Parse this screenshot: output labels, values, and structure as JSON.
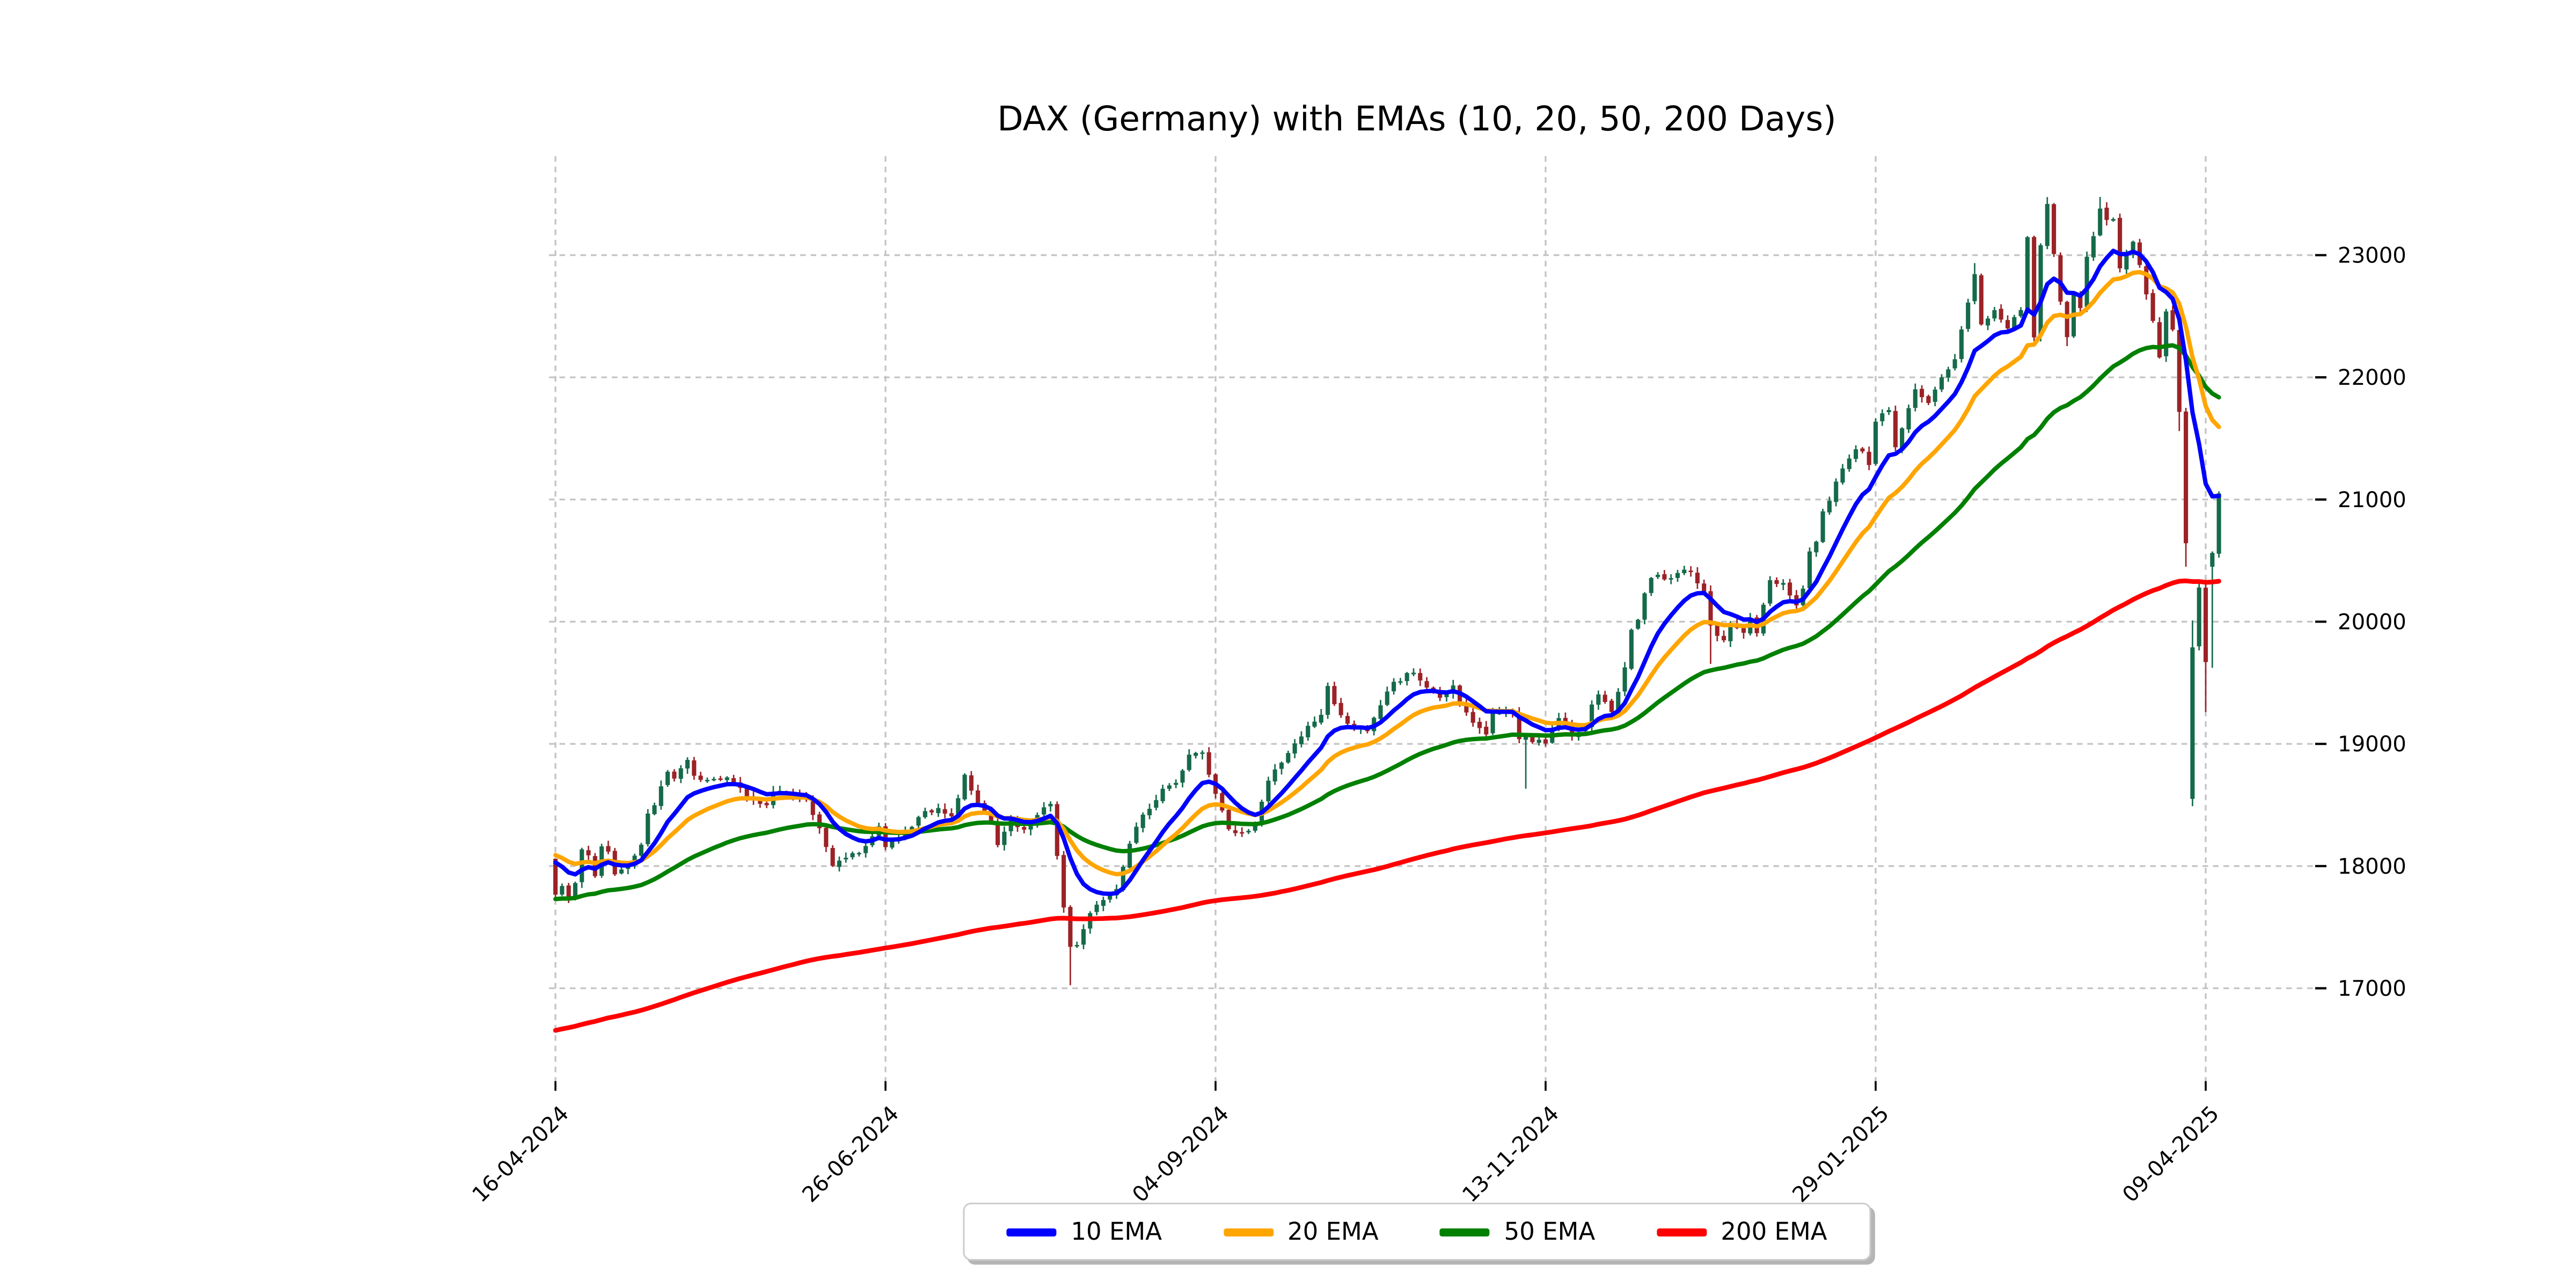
{
  "title": "DAX (Germany) with EMAs (10, 20, 50, 200 Days)",
  "chart_data": {
    "type": "candlestick",
    "title": "DAX (Germany) with EMAs (10, 20, 50, 200 Days)",
    "x_tick_labels": [
      "16-04-2024",
      "26-06-2024",
      "04-09-2024",
      "13-11-2024",
      "29-01-2025",
      "09-04-2025"
    ],
    "x_tick_indices": [
      0,
      50,
      100,
      150,
      200,
      250
    ],
    "num_bars": 253,
    "y_ticks": [
      17000,
      18000,
      19000,
      20000,
      21000,
      22000,
      23000
    ],
    "ylim": [
      16240,
      23810
    ],
    "grid": true,
    "grid_color": "#c4c4c4",
    "tick_color": "#000000",
    "up_color": "#156a4a",
    "down_color": "#9b2226",
    "legend_position": "bottom-center",
    "series": [
      {
        "name": "10 EMA",
        "color": "#0000ff",
        "period": 10,
        "seed": 18030
      },
      {
        "name": "20 EMA",
        "color": "#ffa500",
        "period": 20,
        "seed": 18090
      },
      {
        "name": "50 EMA",
        "color": "#008000",
        "period": 50,
        "seed": 17730
      },
      {
        "name": "200 EMA",
        "color": "#ff0000",
        "period": 200,
        "seed": 16655
      }
    ],
    "close_anchors": [
      [
        0,
        17766
      ],
      [
        1,
        17837
      ],
      [
        2,
        17737
      ],
      [
        3,
        17861
      ],
      [
        4,
        18137
      ],
      [
        5,
        18088
      ],
      [
        6,
        17917
      ],
      [
        7,
        18161
      ],
      [
        8,
        18118
      ],
      [
        9,
        17932
      ],
      [
        11,
        18001
      ],
      [
        13,
        18175
      ],
      [
        14,
        18430
      ],
      [
        15,
        18498
      ],
      [
        17,
        18772
      ],
      [
        18,
        18716
      ],
      [
        20,
        18869
      ],
      [
        21,
        18739
      ],
      [
        23,
        18705
      ],
      [
        26,
        18726
      ],
      [
        29,
        18570
      ],
      [
        32,
        18498
      ],
      [
        33,
        18608
      ],
      [
        36,
        18575
      ],
      [
        38,
        18557
      ],
      [
        40,
        18310
      ],
      [
        42,
        18002
      ],
      [
        44,
        18068
      ],
      [
        47,
        18164
      ],
      [
        49,
        18326
      ],
      [
        50,
        18155
      ],
      [
        52,
        18235
      ],
      [
        53,
        18290
      ],
      [
        56,
        18450
      ],
      [
        58,
        18475
      ],
      [
        60,
        18407
      ],
      [
        62,
        18748
      ],
      [
        64,
        18518
      ],
      [
        66,
        18354
      ],
      [
        67,
        18172
      ],
      [
        69,
        18387
      ],
      [
        71,
        18298
      ],
      [
        73,
        18418
      ],
      [
        75,
        18509
      ],
      [
        76,
        18083
      ],
      [
        77,
        17661
      ],
      [
        78,
        17339
      ],
      [
        79,
        17354
      ],
      [
        81,
        17615
      ],
      [
        83,
        17722
      ],
      [
        85,
        17812
      ],
      [
        87,
        18183
      ],
      [
        88,
        18322
      ],
      [
        89,
        18421
      ],
      [
        92,
        18633
      ],
      [
        94,
        18681
      ],
      [
        95,
        18782
      ],
      [
        96,
        18912
      ],
      [
        98,
        18930
      ],
      [
        100,
        18591
      ],
      [
        102,
        18302
      ],
      [
        104,
        18266
      ],
      [
        106,
        18330
      ],
      [
        108,
        18699
      ],
      [
        110,
        18846
      ],
      [
        112,
        19003
      ],
      [
        114,
        19148
      ],
      [
        116,
        19238
      ],
      [
        117,
        19474
      ],
      [
        118,
        19325
      ],
      [
        120,
        19165
      ],
      [
        123,
        19104
      ],
      [
        127,
        19508
      ],
      [
        130,
        19583
      ],
      [
        132,
        19461
      ],
      [
        134,
        19377
      ],
      [
        136,
        19478
      ],
      [
        138,
        19257
      ],
      [
        141,
        19077
      ],
      [
        142,
        19255
      ],
      [
        145,
        19257
      ],
      [
        146,
        19039
      ],
      [
        149,
        19034
      ],
      [
        150,
        19003
      ],
      [
        152,
        19211
      ],
      [
        154,
        19060
      ],
      [
        156,
        19146
      ],
      [
        157,
        19322
      ],
      [
        158,
        19405
      ],
      [
        160,
        19261
      ],
      [
        161,
        19426
      ],
      [
        162,
        19626
      ],
      [
        163,
        19934
      ],
      [
        164,
        20016
      ],
      [
        165,
        20232
      ],
      [
        166,
        20358
      ],
      [
        167,
        20384
      ],
      [
        168,
        20346
      ],
      [
        170,
        20399
      ],
      [
        171,
        20426
      ],
      [
        172,
        20406
      ],
      [
        173,
        20314
      ],
      [
        174,
        20246
      ],
      [
        175,
        19969
      ],
      [
        176,
        19884
      ],
      [
        177,
        19848
      ],
      [
        178,
        19984
      ],
      [
        180,
        19909
      ],
      [
        181,
        20025
      ],
      [
        182,
        19906
      ],
      [
        184,
        20340
      ],
      [
        186,
        20317
      ],
      [
        187,
        20215
      ],
      [
        188,
        20133
      ],
      [
        189,
        20271
      ],
      [
        190,
        20575
      ],
      [
        191,
        20655
      ],
      [
        192,
        20903
      ],
      [
        193,
        20990
      ],
      [
        195,
        21254
      ],
      [
        197,
        21411
      ],
      [
        198,
        21394
      ],
      [
        199,
        21282
      ],
      [
        200,
        21637
      ],
      [
        202,
        21732
      ],
      [
        203,
        21428
      ],
      [
        206,
        21902
      ],
      [
        208,
        21790
      ],
      [
        210,
        22000
      ],
      [
        212,
        22148
      ],
      [
        214,
        22612
      ],
      [
        215,
        22845
      ],
      [
        216,
        22433
      ],
      [
        218,
        22550
      ],
      [
        220,
        22400
      ],
      [
        222,
        22551
      ],
      [
        223,
        23147
      ],
      [
        224,
        22327
      ],
      [
        225,
        23081
      ],
      [
        226,
        23419
      ],
      [
        227,
        23009
      ],
      [
        228,
        22620
      ],
      [
        229,
        22329
      ],
      [
        230,
        22676
      ],
      [
        231,
        22567
      ],
      [
        232,
        22987
      ],
      [
        233,
        23155
      ],
      [
        234,
        23381
      ],
      [
        235,
        23288
      ],
      [
        236,
        23295
      ],
      [
        237,
        22892
      ],
      [
        239,
        23110
      ],
      [
        241,
        22679
      ],
      [
        242,
        22462
      ],
      [
        243,
        22163
      ],
      [
        244,
        22539
      ],
      [
        245,
        22390
      ],
      [
        246,
        21717
      ],
      [
        247,
        20642
      ],
      [
        248,
        19790
      ],
      [
        249,
        20280
      ],
      [
        250,
        19670
      ],
      [
        251,
        20563
      ],
      [
        252,
        21050
      ]
    ],
    "wick_overrides": {
      "78": {
        "low": 17025
      },
      "147": {
        "low": 18633
      },
      "175": {
        "low": 19655
      },
      "215": {
        "high": 22935
      },
      "226": {
        "high": 23475
      },
      "229": {
        "low": 22255
      },
      "234": {
        "high": 23476
      },
      "246": {
        "low": 21560
      },
      "247": {
        "low": 20450
      },
      "250": {
        "low": 19260
      }
    },
    "explicit_bars": {
      "0": {
        "open": 18060
      },
      "248": {
        "open": 18550,
        "high": 20010,
        "low": 18490,
        "close": 19790
      },
      "251": {
        "open": 20450
      }
    }
  }
}
